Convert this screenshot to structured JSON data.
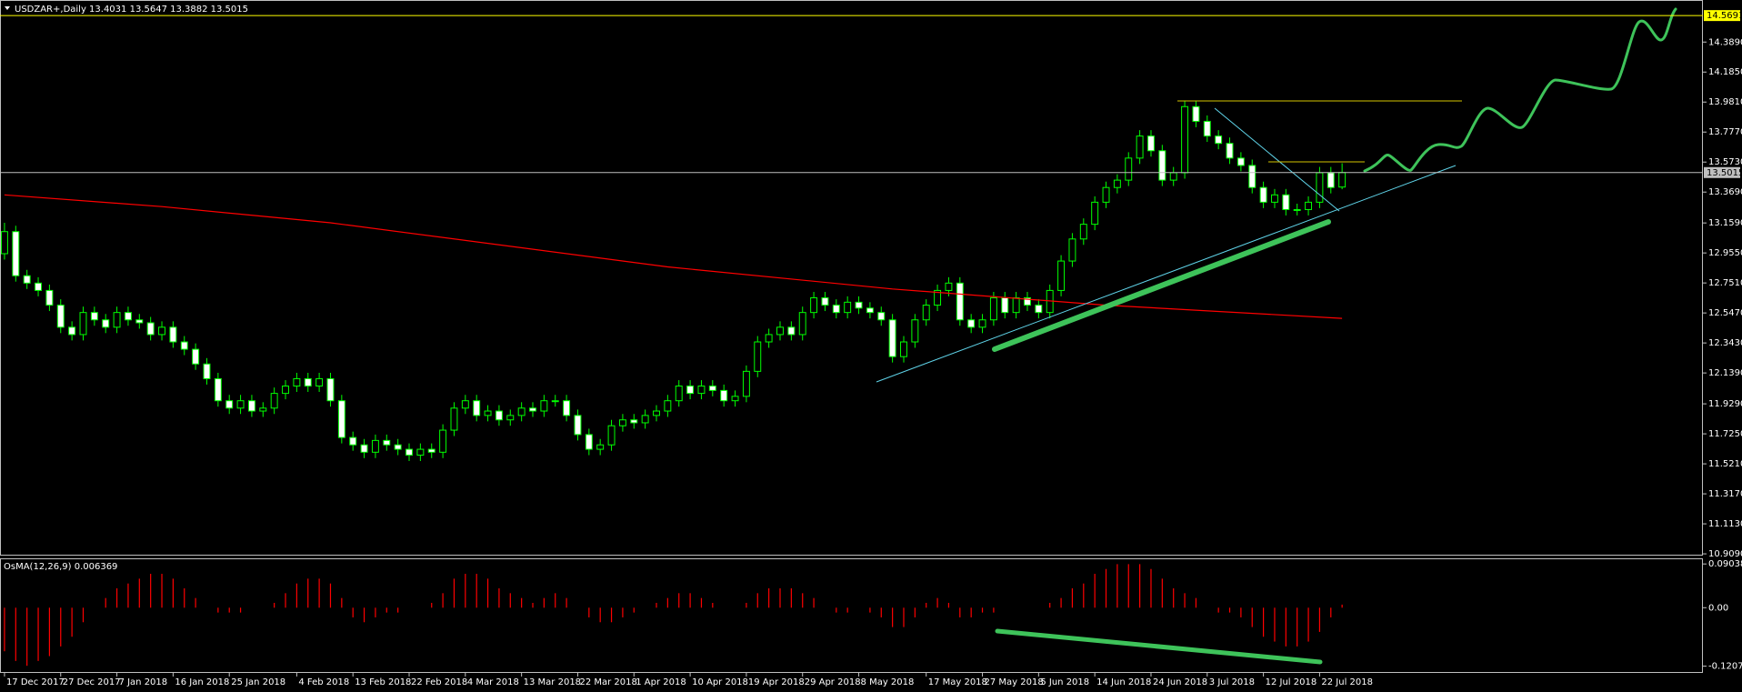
{
  "chart_data": [
    {
      "type": "candlestick",
      "title": "USDZAR+,Daily  13.4031 13.5647 13.3882 13.5015",
      "open": [
        12.95,
        13.1,
        12.8,
        12.75,
        12.7,
        12.6,
        12.45,
        12.4,
        12.55,
        12.5,
        12.45,
        12.55,
        12.5,
        12.48,
        12.4,
        12.45,
        12.35,
        12.3,
        12.2,
        12.1,
        11.95,
        11.9,
        11.95,
        11.88,
        11.9,
        12.0,
        12.05,
        12.1,
        12.05,
        12.1,
        11.95,
        11.7,
        11.65,
        11.6,
        11.68,
        11.65,
        11.62,
        11.58,
        11.62,
        11.6,
        11.75,
        11.9,
        11.95,
        11.85,
        11.88,
        11.82,
        11.85,
        11.9,
        11.88,
        11.95,
        11.95,
        11.85,
        11.72,
        11.62,
        11.65,
        11.78,
        11.82,
        11.8,
        11.85,
        11.88,
        11.95,
        12.05,
        12.0,
        12.05,
        12.02,
        11.95,
        11.98,
        12.15,
        12.35,
        12.4,
        12.45,
        12.4,
        12.55,
        12.65,
        12.6,
        12.55,
        12.62,
        12.58,
        12.55,
        12.5,
        12.25,
        12.35,
        12.5,
        12.6,
        12.7,
        12.75,
        12.5,
        12.45,
        12.5,
        12.65,
        12.55,
        12.65,
        12.6,
        12.55,
        12.7,
        12.9,
        13.05,
        13.15,
        13.3,
        13.4,
        13.45,
        13.6,
        13.75,
        13.65,
        13.45,
        13.5,
        13.95,
        13.85,
        13.75,
        13.7,
        13.6,
        13.55,
        13.4,
        13.3,
        13.35,
        13.25,
        13.25,
        13.3,
        13.5,
        13.4031
      ],
      "high": [
        13.16,
        13.14,
        12.84,
        12.79,
        12.74,
        12.64,
        12.49,
        12.59,
        12.59,
        12.54,
        12.59,
        12.59,
        12.54,
        12.52,
        12.49,
        12.49,
        12.39,
        12.34,
        12.24,
        12.14,
        11.99,
        11.99,
        11.99,
        11.94,
        12.04,
        12.09,
        12.14,
        12.14,
        12.14,
        12.14,
        11.99,
        11.74,
        11.69,
        11.72,
        11.72,
        11.69,
        11.66,
        11.66,
        11.66,
        11.79,
        11.94,
        11.99,
        11.99,
        11.92,
        11.92,
        11.89,
        11.94,
        11.94,
        11.99,
        11.99,
        11.99,
        11.89,
        11.76,
        11.69,
        11.82,
        11.86,
        11.86,
        11.89,
        11.92,
        11.99,
        12.09,
        12.09,
        12.09,
        12.09,
        12.06,
        12.02,
        12.19,
        12.39,
        12.44,
        12.49,
        12.49,
        12.59,
        12.69,
        12.69,
        12.64,
        12.66,
        12.66,
        12.62,
        12.59,
        12.54,
        12.39,
        12.54,
        12.64,
        12.74,
        12.79,
        12.79,
        12.54,
        12.54,
        12.69,
        12.69,
        12.69,
        12.69,
        12.64,
        12.74,
        12.94,
        13.09,
        13.19,
        13.34,
        13.44,
        13.49,
        13.64,
        13.79,
        13.79,
        13.69,
        13.54,
        13.99,
        13.99,
        13.89,
        13.79,
        13.74,
        13.64,
        13.59,
        13.44,
        13.39,
        13.39,
        13.29,
        13.34,
        13.54,
        13.54,
        13.5647
      ],
      "low": [
        12.91,
        12.76,
        12.71,
        12.66,
        12.56,
        12.41,
        12.36,
        12.36,
        12.46,
        12.41,
        12.41,
        12.46,
        12.44,
        12.36,
        12.36,
        12.31,
        12.26,
        12.16,
        12.06,
        11.91,
        11.86,
        11.86,
        11.84,
        11.84,
        11.86,
        11.96,
        12.01,
        12.01,
        12.01,
        11.91,
        11.66,
        11.61,
        11.56,
        11.56,
        11.61,
        11.58,
        11.54,
        11.54,
        11.56,
        11.56,
        11.71,
        11.86,
        11.81,
        11.81,
        11.78,
        11.78,
        11.81,
        11.84,
        11.84,
        11.91,
        11.81,
        11.68,
        11.58,
        11.58,
        11.61,
        11.74,
        11.76,
        11.76,
        11.81,
        11.84,
        11.91,
        11.96,
        11.96,
        11.98,
        11.91,
        11.91,
        11.94,
        12.11,
        12.31,
        12.36,
        12.36,
        12.36,
        12.51,
        12.56,
        12.51,
        12.51,
        12.54,
        12.51,
        12.46,
        12.21,
        12.21,
        12.31,
        12.46,
        12.56,
        12.66,
        12.46,
        12.41,
        12.41,
        12.46,
        12.51,
        12.51,
        12.56,
        12.51,
        12.51,
        12.66,
        12.86,
        13.01,
        13.11,
        13.26,
        13.36,
        13.41,
        13.56,
        13.61,
        13.41,
        13.41,
        13.46,
        13.81,
        13.71,
        13.66,
        13.56,
        13.51,
        13.36,
        13.26,
        13.26,
        13.21,
        13.21,
        13.21,
        13.26,
        13.36,
        13.3882
      ],
      "close": [
        13.1,
        12.8,
        12.75,
        12.7,
        12.6,
        12.45,
        12.4,
        12.55,
        12.5,
        12.45,
        12.55,
        12.5,
        12.48,
        12.4,
        12.45,
        12.35,
        12.3,
        12.2,
        12.1,
        11.95,
        11.9,
        11.95,
        11.88,
        11.9,
        12.0,
        12.05,
        12.1,
        12.05,
        12.1,
        11.95,
        11.7,
        11.65,
        11.6,
        11.68,
        11.65,
        11.62,
        11.58,
        11.62,
        11.6,
        11.75,
        11.9,
        11.95,
        11.85,
        11.88,
        11.82,
        11.85,
        11.9,
        11.88,
        11.95,
        11.95,
        11.85,
        11.72,
        11.62,
        11.65,
        11.78,
        11.82,
        11.8,
        11.85,
        11.88,
        11.95,
        12.05,
        12.0,
        12.05,
        12.02,
        11.95,
        11.98,
        12.15,
        12.35,
        12.4,
        12.45,
        12.4,
        12.55,
        12.65,
        12.6,
        12.55,
        12.62,
        12.58,
        12.55,
        12.5,
        12.25,
        12.35,
        12.5,
        12.6,
        12.7,
        12.75,
        12.5,
        12.45,
        12.5,
        12.65,
        12.55,
        12.65,
        12.6,
        12.55,
        12.7,
        12.9,
        13.05,
        13.15,
        13.3,
        13.4,
        13.45,
        13.6,
        13.75,
        13.65,
        13.45,
        13.5,
        13.95,
        13.85,
        13.75,
        13.7,
        13.6,
        13.55,
        13.4,
        13.3,
        13.35,
        13.25,
        13.25,
        13.3,
        13.5,
        13.4,
        13.5015
      ],
      "up_color": "#000000",
      "down_color": "#ffffff",
      "wick_color": "#00ff00",
      "xlim": [
        -0.4,
        151.1
      ],
      "ylim": [
        10.897,
        14.675
      ],
      "yticks": [
        {
          "value": 14.389,
          "label": "14.3890"
        },
        {
          "value": 14.185,
          "label": "14.1850"
        },
        {
          "value": 13.981,
          "label": "13.9810"
        },
        {
          "value": 13.777,
          "label": "13.7770"
        },
        {
          "value": 13.573,
          "label": "13.5730"
        },
        {
          "value": 13.369,
          "label": "13.3690"
        },
        {
          "value": 13.159,
          "label": "13.1590"
        },
        {
          "value": 12.955,
          "label": "12.9550"
        },
        {
          "value": 12.751,
          "label": "12.7510"
        },
        {
          "value": 12.547,
          "label": "12.5470"
        },
        {
          "value": 12.343,
          "label": "12.3430"
        },
        {
          "value": 12.139,
          "label": "12.1390"
        },
        {
          "value": 11.929,
          "label": "11.9290"
        },
        {
          "value": 11.725,
          "label": "11.7250"
        },
        {
          "value": 11.521,
          "label": "11.5210"
        },
        {
          "value": 11.317,
          "label": "11.3170"
        },
        {
          "value": 11.113,
          "label": "11.1130"
        },
        {
          "value": 10.909,
          "label": "10.9090"
        }
      ],
      "xticks": [
        {
          "value": 0,
          "label": "17 Dec 2017"
        },
        {
          "value": 5,
          "label": "27 Dec 2017"
        },
        {
          "value": 10,
          "label": "7 Jan 2018"
        },
        {
          "value": 15,
          "label": "16 Jan 2018"
        },
        {
          "value": 20,
          "label": "25 Jan 2018"
        },
        {
          "value": 26,
          "label": "4 Feb 2018"
        },
        {
          "value": 31,
          "label": "13 Feb 2018"
        },
        {
          "value": 36,
          "label": "22 Feb 2018"
        },
        {
          "value": 41,
          "label": "4 Mar 2018"
        },
        {
          "value": 46,
          "label": "13 Mar 2018"
        },
        {
          "value": 51,
          "label": "22 Mar 2018"
        },
        {
          "value": 56,
          "label": "1 Apr 2018"
        },
        {
          "value": 61,
          "label": "10 Apr 2018"
        },
        {
          "value": 66,
          "label": "19 Apr 2018"
        },
        {
          "value": 71,
          "label": "29 Apr 2018"
        },
        {
          "value": 76,
          "label": "8 May 2018"
        },
        {
          "value": 82,
          "label": "17 May 2018"
        },
        {
          "value": 87,
          "label": "27 May 2018"
        },
        {
          "value": 92,
          "label": "5 Jun 2018"
        },
        {
          "value": 97,
          "label": "14 Jun 2018"
        },
        {
          "value": 102,
          "label": "24 Jun 2018"
        },
        {
          "value": 107,
          "label": "3 Jul 2018"
        },
        {
          "value": 112,
          "label": "12 Jul 2018"
        },
        {
          "value": 117,
          "label": "22 Jul 2018"
        }
      ],
      "grid": false,
      "moving_average": {
        "x": [
          0,
          14,
          29,
          59,
          79,
          98,
          119
        ],
        "values": [
          13.35,
          13.27,
          13.16,
          12.86,
          12.71,
          12.6,
          12.51
        ],
        "color": "#ff0000"
      },
      "price_lines": [
        {
          "value": 14.5691,
          "color": "#ffff00"
        },
        {
          "value": 13.5015,
          "color": "#c0c0c0"
        }
      ]
    },
    {
      "type": "bar",
      "title": "OsMA(12,26,9) 0.006369",
      "values": [
        -0.09,
        -0.11,
        -0.12,
        -0.11,
        -0.1,
        -0.08,
        -0.06,
        -0.03,
        0.0,
        0.02,
        0.04,
        0.05,
        0.06,
        0.07,
        0.07,
        0.06,
        0.04,
        0.02,
        0.0,
        -0.01,
        -0.01,
        -0.01,
        0.0,
        0.0,
        0.01,
        0.03,
        0.05,
        0.06,
        0.06,
        0.05,
        0.02,
        -0.02,
        -0.03,
        -0.02,
        -0.01,
        -0.01,
        0.0,
        0.0,
        0.01,
        0.03,
        0.06,
        0.07,
        0.07,
        0.06,
        0.04,
        0.03,
        0.02,
        0.01,
        0.02,
        0.03,
        0.02,
        0.0,
        -0.02,
        -0.03,
        -0.03,
        -0.02,
        -0.01,
        0.0,
        0.01,
        0.02,
        0.03,
        0.03,
        0.02,
        0.01,
        0.0,
        0.0,
        0.01,
        0.03,
        0.04,
        0.04,
        0.04,
        0.03,
        0.02,
        0.0,
        -0.01,
        -0.01,
        0.0,
        -0.01,
        -0.02,
        -0.04,
        -0.04,
        -0.02,
        0.01,
        0.02,
        0.01,
        -0.02,
        -0.02,
        -0.01,
        -0.01,
        0.0,
        0.0,
        0.0,
        0.0,
        0.01,
        0.02,
        0.04,
        0.05,
        0.07,
        0.08,
        0.09,
        0.09,
        0.09,
        0.08,
        0.06,
        0.04,
        0.03,
        0.02,
        0.0,
        -0.01,
        -0.01,
        -0.02,
        -0.04,
        -0.06,
        -0.07,
        -0.08,
        -0.08,
        -0.07,
        -0.05,
        -0.02,
        0.006369
      ],
      "color": "#ff0000",
      "xlim": [
        -0.4,
        151.1
      ],
      "ylim": [
        -0.1347,
        0.102
      ],
      "yticks": [
        0.090385,
        {
          "value": 0,
          "label": "0.00"
        },
        -0.120721
      ]
    }
  ]
}
